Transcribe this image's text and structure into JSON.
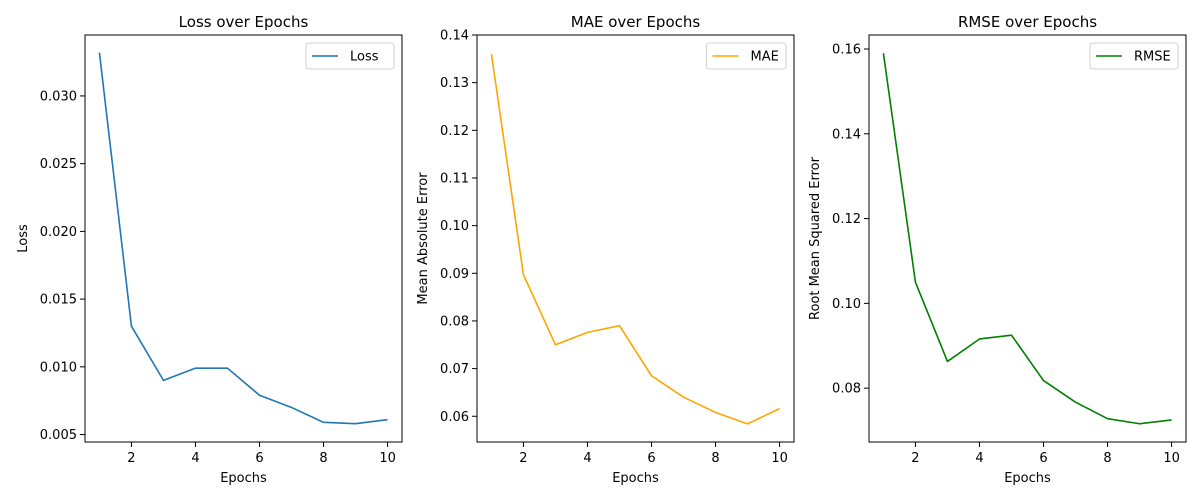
{
  "chart_data": [
    {
      "type": "line",
      "title": "Loss over Epochs",
      "xlabel": "Epochs",
      "ylabel": "Loss",
      "x": [
        1,
        2,
        3,
        4,
        5,
        6,
        7,
        8,
        9,
        10
      ],
      "series": [
        {
          "name": "Loss",
          "color": "#1f77b4",
          "values": [
            0.0332,
            0.013,
            0.009,
            0.0099,
            0.0099,
            0.0079,
            0.007,
            0.0059,
            0.0058,
            0.0061
          ]
        }
      ],
      "xlim": [
        0.55,
        10.45
      ],
      "ylim": [
        0.00445,
        0.0345
      ],
      "xticks": [
        2,
        4,
        6,
        8,
        10
      ],
      "yticks": [
        0.005,
        0.01,
        0.015,
        0.02,
        0.025,
        0.03
      ],
      "xtick_labels": [
        "2",
        "4",
        "6",
        "8",
        "10"
      ],
      "ytick_labels": [
        "0.005",
        "0.010",
        "0.015",
        "0.020",
        "0.025",
        "0.030"
      ],
      "legend": "top-right",
      "grid": false
    },
    {
      "type": "line",
      "title": "MAE over Epochs",
      "xlabel": "Epochs",
      "ylabel": "Mean Absolute Error",
      "x": [
        1,
        2,
        3,
        4,
        5,
        6,
        7,
        8,
        9,
        10
      ],
      "series": [
        {
          "name": "MAE",
          "color": "#ffa500",
          "values": [
            0.136,
            0.0897,
            0.075,
            0.0776,
            0.079,
            0.0685,
            0.064,
            0.0608,
            0.0584,
            0.0616
          ]
        }
      ],
      "xlim": [
        0.55,
        10.45
      ],
      "ylim": [
        0.0546,
        0.14
      ],
      "xticks": [
        2,
        4,
        6,
        8,
        10
      ],
      "yticks": [
        0.06,
        0.07,
        0.08,
        0.09,
        0.1,
        0.11,
        0.12,
        0.13,
        0.14
      ],
      "xtick_labels": [
        "2",
        "4",
        "6",
        "8",
        "10"
      ],
      "ytick_labels": [
        "0.06",
        "0.07",
        "0.08",
        "0.09",
        "0.10",
        "0.11",
        "0.12",
        "0.13",
        "0.14"
      ],
      "legend": "top-right",
      "grid": false
    },
    {
      "type": "line",
      "title": "RMSE over Epochs",
      "xlabel": "Epochs",
      "ylabel": "Root Mean Squared Error",
      "x": [
        1,
        2,
        3,
        4,
        5,
        6,
        7,
        8,
        9,
        10
      ],
      "series": [
        {
          "name": "RMSE",
          "color": "#008000",
          "values": [
            0.159,
            0.105,
            0.0863,
            0.0916,
            0.0925,
            0.0818,
            0.0767,
            0.0728,
            0.0716,
            0.0725
          ]
        }
      ],
      "xlim": [
        0.55,
        10.45
      ],
      "ylim": [
        0.0673,
        0.1633
      ],
      "xticks": [
        2,
        4,
        6,
        8,
        10
      ],
      "yticks": [
        0.08,
        0.1,
        0.12,
        0.14,
        0.16
      ],
      "xtick_labels": [
        "2",
        "4",
        "6",
        "8",
        "10"
      ],
      "ytick_labels": [
        "0.08",
        "0.10",
        "0.12",
        "0.14",
        "0.16"
      ],
      "legend": "top-right",
      "grid": false
    }
  ]
}
